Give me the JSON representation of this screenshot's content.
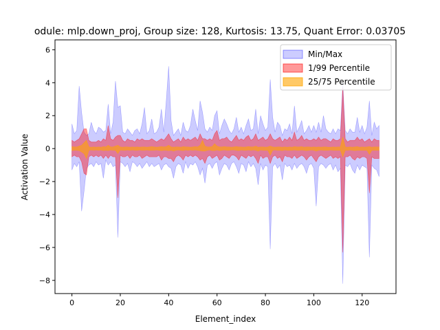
{
  "chart_data": {
    "type": "area",
    "title": "odule: mlp.down_proj,  Group size: 128, Kurtosis: 13.75, Quant Error: 0.03705",
    "xlabel": "Element_index",
    "ylabel": "Activation Value",
    "xlim": [
      -7,
      134
    ],
    "ylim": [
      -8.8,
      6.6
    ],
    "xticks": [
      0,
      20,
      40,
      60,
      80,
      100,
      120
    ],
    "yticks": [
      -8,
      -6,
      -4,
      -2,
      0,
      2,
      4,
      6
    ],
    "legend_position": "top-right",
    "grid": false,
    "series": [
      {
        "name": "Min/Max",
        "color": "#0000ff",
        "alpha": 0.2,
        "band": "minmax"
      },
      {
        "name": "1/99 Percentile",
        "color": "#ff0000",
        "alpha": 0.4,
        "band": "p1_99"
      },
      {
        "name": "25/75 Percentile",
        "color": "#ffa500",
        "alpha": 0.6,
        "band": "p25_75"
      }
    ],
    "x": [
      0,
      1,
      2,
      3,
      4,
      5,
      6,
      7,
      8,
      9,
      10,
      11,
      12,
      13,
      14,
      15,
      16,
      17,
      18,
      19,
      20,
      21,
      22,
      23,
      24,
      25,
      26,
      27,
      28,
      29,
      30,
      31,
      32,
      33,
      34,
      35,
      36,
      37,
      38,
      39,
      40,
      41,
      42,
      43,
      44,
      45,
      46,
      47,
      48,
      49,
      50,
      51,
      52,
      53,
      54,
      55,
      56,
      57,
      58,
      59,
      60,
      61,
      62,
      63,
      64,
      65,
      66,
      67,
      68,
      69,
      70,
      71,
      72,
      73,
      74,
      75,
      76,
      77,
      78,
      79,
      80,
      81,
      82,
      83,
      84,
      85,
      86,
      87,
      88,
      89,
      90,
      91,
      92,
      93,
      94,
      95,
      96,
      97,
      98,
      99,
      100,
      101,
      102,
      103,
      104,
      105,
      106,
      107,
      108,
      109,
      110,
      111,
      112,
      113,
      114,
      115,
      116,
      117,
      118,
      119,
      120,
      121,
      122,
      123,
      124,
      125,
      126,
      127
    ],
    "bands": {
      "minmax": {
        "upper": [
          1.5,
          0.9,
          1.1,
          3.8,
          2.2,
          1.0,
          0.8,
          0.9,
          1.6,
          1.1,
          0.9,
          1.3,
          1.2,
          1.0,
          1.1,
          2.7,
          0.9,
          1.6,
          4.1,
          2.5,
          2.6,
          1.0,
          0.9,
          1.2,
          1.0,
          0.8,
          1.1,
          1.2,
          0.9,
          1.5,
          2.5,
          0.9,
          1.1,
          1.8,
          0.9,
          1.0,
          1.3,
          2.4,
          1.0,
          2.9,
          5.0,
          1.7,
          0.8,
          1.0,
          1.2,
          0.8,
          1.6,
          1.1,
          1.0,
          1.4,
          2.4,
          1.7,
          1.1,
          2.9,
          2.2,
          1.2,
          1.0,
          1.3,
          1.1,
          2.0,
          2.3,
          0.9,
          1.4,
          1.8,
          1.5,
          1.1,
          0.9,
          1.2,
          1.9,
          1.0,
          1.3,
          0.9,
          1.4,
          1.8,
          1.1,
          1.2,
          2.4,
          0.9,
          2.0,
          1.5,
          1.1,
          1.3,
          4.2,
          1.9,
          1.0,
          1.6,
          1.4,
          0.8,
          1.2,
          1.1,
          1.5,
          0.9,
          2.6,
          1.0,
          1.3,
          1.7,
          0.9,
          1.1,
          1.4,
          1.0,
          1.4,
          1.0,
          1.6,
          1.0,
          2.0,
          1.2,
          1.0,
          0.9,
          1.2,
          0.9,
          1.2,
          1.1,
          4.0,
          1.1,
          0.9,
          1.2,
          1.0,
          1.0,
          1.9,
          1.0,
          1.4,
          0.9,
          1.3,
          2.9,
          0.8,
          1.6,
          1.2,
          1.4
        ],
        "lower": [
          -1.3,
          -0.9,
          -1.1,
          -0.8,
          -3.8,
          -2.6,
          -1.2,
          -1.0,
          -0.9,
          -1.1,
          -0.8,
          -1.0,
          -0.9,
          -1.8,
          -0.7,
          -1.0,
          -0.8,
          -1.1,
          -1.0,
          -5.4,
          -0.8,
          -0.9,
          -1.1,
          -0.9,
          -1.4,
          -0.8,
          -0.9,
          -1.1,
          -0.9,
          -1.2,
          -1.0,
          -0.8,
          -1.1,
          -0.9,
          -1.1,
          -1.0,
          -0.9,
          -1.3,
          -1.0,
          -0.9,
          -1.1,
          -1.2,
          -1.8,
          -1.1,
          -0.9,
          -1.0,
          -1.5,
          -0.8,
          -1.2,
          -0.9,
          -1.0,
          -0.8,
          -1.1,
          -1.6,
          -1.2,
          -2.1,
          -1.0,
          -0.9,
          -1.2,
          -0.9,
          -0.8,
          -1.6,
          -1.2,
          -0.9,
          -1.0,
          -1.3,
          -0.9,
          -0.8,
          -1.1,
          -1.5,
          -0.9,
          -1.0,
          -1.4,
          -0.8,
          -1.1,
          -0.9,
          -1.2,
          -2.2,
          -0.9,
          -1.3,
          -1.0,
          -1.1,
          -6.1,
          -1.1,
          -0.9,
          -1.2,
          -1.0,
          -1.9,
          -0.9,
          -1.1,
          -1.0,
          -1.3,
          -0.9,
          -1.2,
          -1.0,
          -0.9,
          -1.1,
          -1.5,
          -1.0,
          -0.9,
          -1.2,
          -3.5,
          -1.1,
          -0.9,
          -1.0,
          -1.2,
          -1.0,
          -0.9,
          -1.3,
          -1.0,
          -1.4,
          -1.2,
          -8.2,
          -1.0,
          -1.1,
          -0.9,
          -1.3,
          -1.5,
          -1.0,
          -1.3,
          -1.0,
          -1.1,
          -1.2,
          -6.6,
          -1.0,
          -1.2,
          -1.3,
          -1.7
        ]
      },
      "p1_99": {
        "upper": [
          0.5,
          0.4,
          0.5,
          0.6,
          0.9,
          1.2,
          1.2,
          0.5,
          0.4,
          0.4,
          0.4,
          0.5,
          0.4,
          0.6,
          0.5,
          1.4,
          0.6,
          0.5,
          0.7,
          0.8,
          0.8,
          0.5,
          0.4,
          0.6,
          0.5,
          0.5,
          0.4,
          0.6,
          0.5,
          0.6,
          0.5,
          0.5,
          0.5,
          0.6,
          0.5,
          0.4,
          0.5,
          0.6,
          0.5,
          0.7,
          0.9,
          0.6,
          0.4,
          0.5,
          0.6,
          0.4,
          0.7,
          0.5,
          0.6,
          0.5,
          0.6,
          0.7,
          0.5,
          0.9,
          0.6,
          0.6,
          0.5,
          0.6,
          0.5,
          0.9,
          1.1,
          0.5,
          0.6,
          0.6,
          0.7,
          0.5,
          0.4,
          0.6,
          0.8,
          0.5,
          0.6,
          0.5,
          0.7,
          0.8,
          0.5,
          0.6,
          0.9,
          0.5,
          0.6,
          0.7,
          0.5,
          0.6,
          0.9,
          0.6,
          0.5,
          0.6,
          0.7,
          0.4,
          0.6,
          0.5,
          0.7,
          0.5,
          1.0,
          0.5,
          0.6,
          0.8,
          0.5,
          0.6,
          0.5,
          0.5,
          0.6,
          0.5,
          0.7,
          0.5,
          0.6,
          0.6,
          0.5,
          0.4,
          0.6,
          0.5,
          0.5,
          0.6,
          3.7,
          0.6,
          0.4,
          0.5,
          0.5,
          0.5,
          0.7,
          0.5,
          0.6,
          0.4,
          0.5,
          0.6,
          0.4,
          0.6,
          0.5,
          0.5
        ],
        "lower": [
          -0.5,
          -0.4,
          -0.5,
          -0.5,
          -0.8,
          -1.5,
          -1.6,
          -0.5,
          -0.4,
          -0.5,
          -0.4,
          -0.5,
          -0.4,
          -0.6,
          -0.4,
          -0.6,
          -0.4,
          -0.5,
          -0.5,
          -3.0,
          -0.4,
          -0.5,
          -0.5,
          -0.4,
          -0.6,
          -0.4,
          -0.5,
          -0.5,
          -0.4,
          -0.6,
          -0.5,
          -0.4,
          -0.5,
          -0.5,
          -0.5,
          -0.5,
          -0.4,
          -0.7,
          -0.5,
          -0.5,
          -0.6,
          -0.6,
          -0.8,
          -0.5,
          -0.4,
          -0.5,
          -0.7,
          -0.4,
          -0.5,
          -0.4,
          -0.5,
          -0.4,
          -0.5,
          -0.7,
          -0.6,
          -0.9,
          -0.5,
          -0.4,
          -0.6,
          -0.5,
          -0.4,
          -0.7,
          -0.6,
          -0.4,
          -0.5,
          -0.6,
          -0.4,
          -0.4,
          -0.5,
          -0.7,
          -0.4,
          -0.5,
          -0.6,
          -0.4,
          -0.5,
          -0.4,
          -0.6,
          -0.9,
          -0.4,
          -0.6,
          -0.5,
          -0.5,
          -0.9,
          -0.5,
          -0.4,
          -0.6,
          -0.5,
          -0.8,
          -0.4,
          -0.5,
          -0.5,
          -0.6,
          -0.4,
          -0.6,
          -0.5,
          -0.4,
          -0.5,
          -0.7,
          -0.5,
          -0.4,
          -0.6,
          -0.8,
          -0.5,
          -0.4,
          -0.5,
          -0.6,
          -0.5,
          -0.4,
          -0.6,
          -0.5,
          -0.6,
          -0.5,
          -6.3,
          -0.5,
          -0.5,
          -0.4,
          -0.6,
          -0.7,
          -0.5,
          -0.6,
          -0.5,
          -0.5,
          -0.6,
          -2.7,
          -0.5,
          -0.6,
          -0.6,
          -0.6
        ]
      },
      "p25_75": {
        "upper": [
          0.12,
          0.1,
          0.1,
          0.15,
          0.2,
          0.35,
          0.5,
          0.1,
          0.08,
          0.1,
          0.08,
          0.1,
          0.08,
          0.12,
          0.1,
          0.2,
          0.1,
          0.1,
          0.15,
          0.2,
          0.1,
          0.08,
          0.1,
          0.1,
          0.08,
          0.1,
          0.08,
          0.1,
          0.08,
          0.1,
          0.1,
          0.08,
          0.1,
          0.12,
          0.1,
          0.08,
          0.1,
          0.12,
          0.1,
          0.12,
          0.2,
          0.1,
          0.08,
          0.1,
          0.1,
          0.08,
          0.12,
          0.1,
          0.1,
          0.08,
          0.1,
          0.12,
          0.1,
          0.2,
          0.5,
          0.15,
          0.1,
          0.1,
          0.12,
          0.3,
          0.15,
          0.1,
          0.1,
          0.12,
          0.1,
          0.1,
          0.08,
          0.1,
          0.12,
          0.1,
          0.1,
          0.08,
          0.1,
          0.12,
          0.1,
          0.1,
          0.15,
          0.08,
          0.1,
          0.1,
          0.08,
          0.1,
          0.15,
          0.1,
          0.08,
          0.1,
          0.1,
          0.08,
          0.1,
          0.08,
          0.1,
          0.08,
          0.12,
          0.1,
          0.1,
          0.12,
          0.08,
          0.1,
          0.1,
          0.08,
          0.1,
          0.08,
          0.1,
          0.08,
          0.1,
          0.1,
          0.08,
          0.08,
          0.1,
          0.08,
          0.1,
          0.1,
          0.7,
          0.1,
          0.08,
          0.1,
          0.08,
          0.1,
          0.12,
          0.08,
          0.1,
          0.08,
          0.1,
          0.12,
          0.08,
          0.1,
          0.1,
          0.1
        ],
        "lower": [
          -0.12,
          -0.1,
          -0.1,
          -0.12,
          -0.2,
          -0.3,
          -0.6,
          -0.1,
          -0.08,
          -0.1,
          -0.08,
          -0.1,
          -0.08,
          -0.12,
          -0.1,
          -0.12,
          -0.08,
          -0.1,
          -0.1,
          -0.3,
          -0.08,
          -0.1,
          -0.1,
          -0.08,
          -0.1,
          -0.08,
          -0.1,
          -0.1,
          -0.08,
          -0.1,
          -0.1,
          -0.08,
          -0.1,
          -0.1,
          -0.1,
          -0.08,
          -0.1,
          -0.12,
          -0.1,
          -0.1,
          -0.12,
          -0.1,
          -0.15,
          -0.1,
          -0.08,
          -0.1,
          -0.12,
          -0.08,
          -0.1,
          -0.08,
          -0.1,
          -0.08,
          -0.1,
          -0.12,
          -0.15,
          -0.15,
          -0.1,
          -0.08,
          -0.12,
          -0.12,
          -0.08,
          -0.12,
          -0.1,
          -0.08,
          -0.1,
          -0.1,
          -0.08,
          -0.08,
          -0.1,
          -0.12,
          -0.08,
          -0.1,
          -0.1,
          -0.08,
          -0.1,
          -0.08,
          -0.1,
          -0.15,
          -0.08,
          -0.1,
          -0.1,
          -0.1,
          -0.4,
          -0.1,
          -0.08,
          -0.1,
          -0.1,
          -0.12,
          -0.08,
          -0.1,
          -0.1,
          -0.1,
          -0.08,
          -0.1,
          -0.1,
          -0.08,
          -0.1,
          -0.12,
          -0.1,
          -0.08,
          -0.1,
          -0.15,
          -0.1,
          -0.08,
          -0.1,
          -0.1,
          -0.1,
          -0.08,
          -0.1,
          -0.1,
          -0.1,
          -0.1,
          -0.5,
          -0.1,
          -0.1,
          -0.08,
          -0.1,
          -0.12,
          -0.1,
          -0.1,
          -0.1,
          -0.1,
          -0.1,
          -0.35,
          -0.1,
          -0.1,
          -0.1,
          -0.1
        ]
      }
    }
  }
}
